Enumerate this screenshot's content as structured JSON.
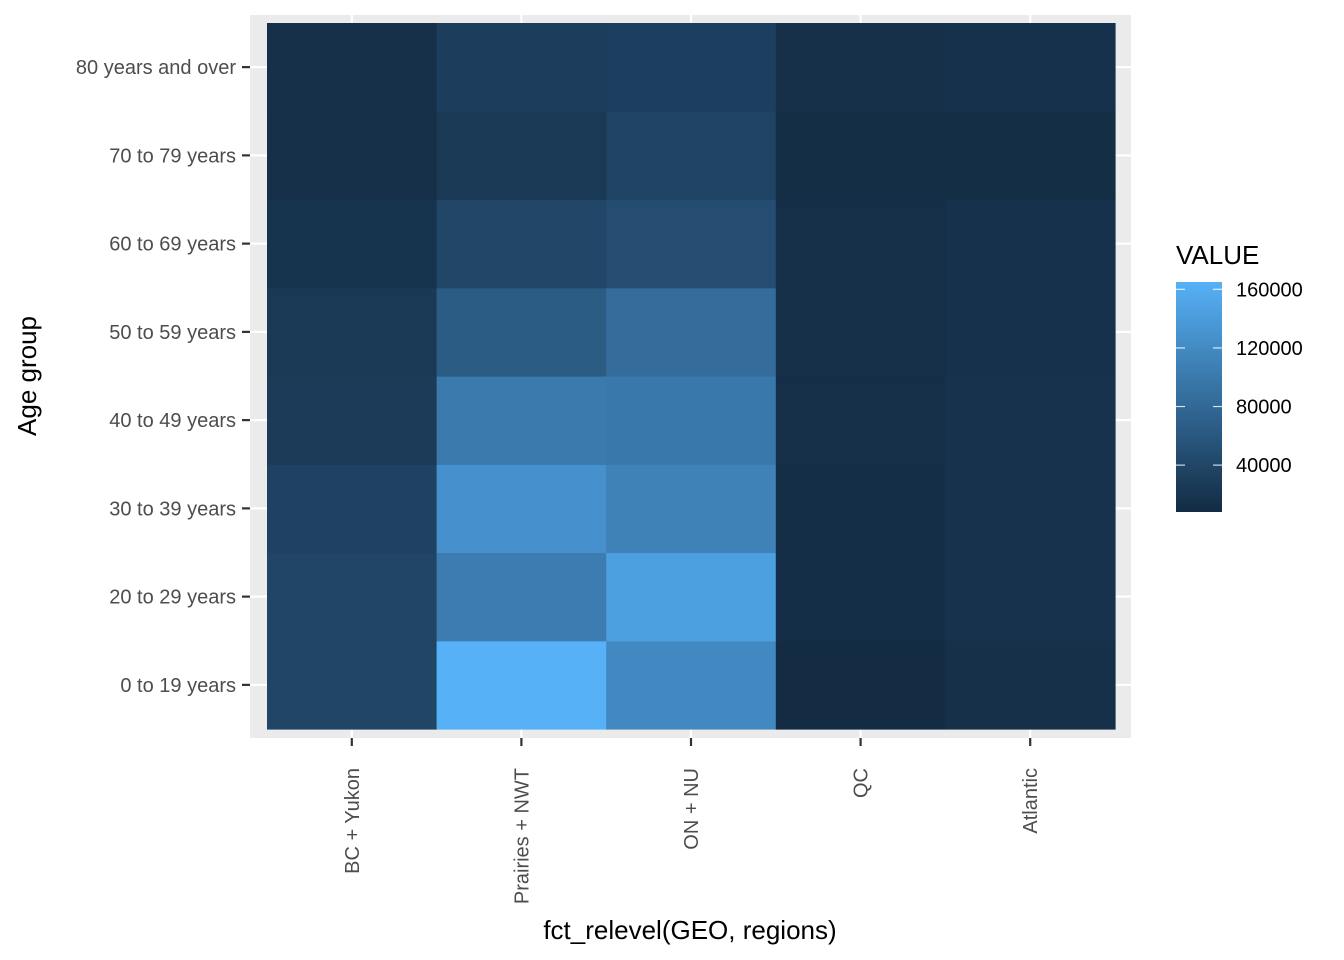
{
  "chart_data": {
    "type": "heatmap",
    "xlabel": "fct_relevel(GEO, regions)",
    "ylabel": "Age group",
    "x_categories": [
      "BC + Yukon",
      "Prairies + NWT",
      "ON + NU",
      "QC",
      "Atlantic"
    ],
    "y_categories": [
      "0 to 19 years",
      "20 to 29 years",
      "30 to 39 years",
      "40 to 49 years",
      "50 to 59 years",
      "60 to 69 years",
      "70 to 79 years",
      "80 years and over"
    ],
    "values": [
      [
        38000,
        165000,
        118000,
        8000,
        14000
      ],
      [
        38000,
        103000,
        145000,
        12000,
        16000
      ],
      [
        35000,
        128000,
        110000,
        12000,
        16000
      ],
      [
        27000,
        100000,
        98000,
        13000,
        16000
      ],
      [
        24000,
        65000,
        85000,
        13000,
        15000
      ],
      [
        18000,
        40000,
        48000,
        13000,
        15000
      ],
      [
        13000,
        24000,
        36000,
        11000,
        11000
      ],
      [
        14000,
        30000,
        32000,
        14000,
        15000
      ]
    ],
    "colorbar": {
      "title": "VALUE",
      "ticks": [
        40000,
        80000,
        120000,
        160000
      ],
      "tick_labels": [
        "40000",
        "80000",
        "120000",
        "160000"
      ],
      "min": 8000,
      "max": 165000,
      "low_color": "#132B43",
      "high_color": "#56B1F7",
      "placement": "right"
    },
    "grid": true
  }
}
